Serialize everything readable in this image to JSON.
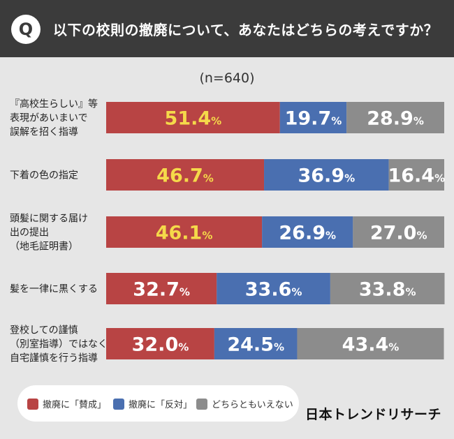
{
  "header": {
    "badge": "Q",
    "question": "以下の校則の撤廃について、あなたはどちらの考えですか？"
  },
  "sample_size": "(n=640)",
  "colors": {
    "agree": "#b84444",
    "disagree": "#4a6fb0",
    "neither": "#8c8c8c",
    "highlight_text": "#f5d94a",
    "normal_text": "#ffffff"
  },
  "chart_data": {
    "type": "bar",
    "orientation": "horizontal",
    "stacked": true,
    "unit": "%",
    "categories": [
      [
        "『高校生らしい』等",
        "表現があいまいで",
        "誤解を招く指導"
      ],
      [
        "下着の色の指定"
      ],
      [
        "頭髪に関する届け",
        "出の提出",
        "（地毛証明書）"
      ],
      [
        "髪を一律に黒くする"
      ],
      [
        "登校しての謹慎",
        "（別室指導）ではなく、",
        "自宅謹慎を行う指導"
      ]
    ],
    "series": [
      {
        "name": "撤廃に「賛成」",
        "key": "agree",
        "values": [
          51.4,
          46.7,
          46.1,
          32.7,
          32.0
        ]
      },
      {
        "name": "撤廃に「反対」",
        "key": "disagree",
        "values": [
          19.7,
          36.9,
          26.9,
          33.6,
          24.5
        ]
      },
      {
        "name": "どちらともいえない",
        "key": "neither",
        "values": [
          28.9,
          16.4,
          27.0,
          33.8,
          43.4
        ]
      }
    ],
    "highlight_agree_rows": [
      0,
      1,
      2
    ],
    "xlim": [
      0,
      100
    ],
    "grid": false,
    "legend_position": "bottom-left"
  },
  "brand": "日本トレンドリサーチ"
}
